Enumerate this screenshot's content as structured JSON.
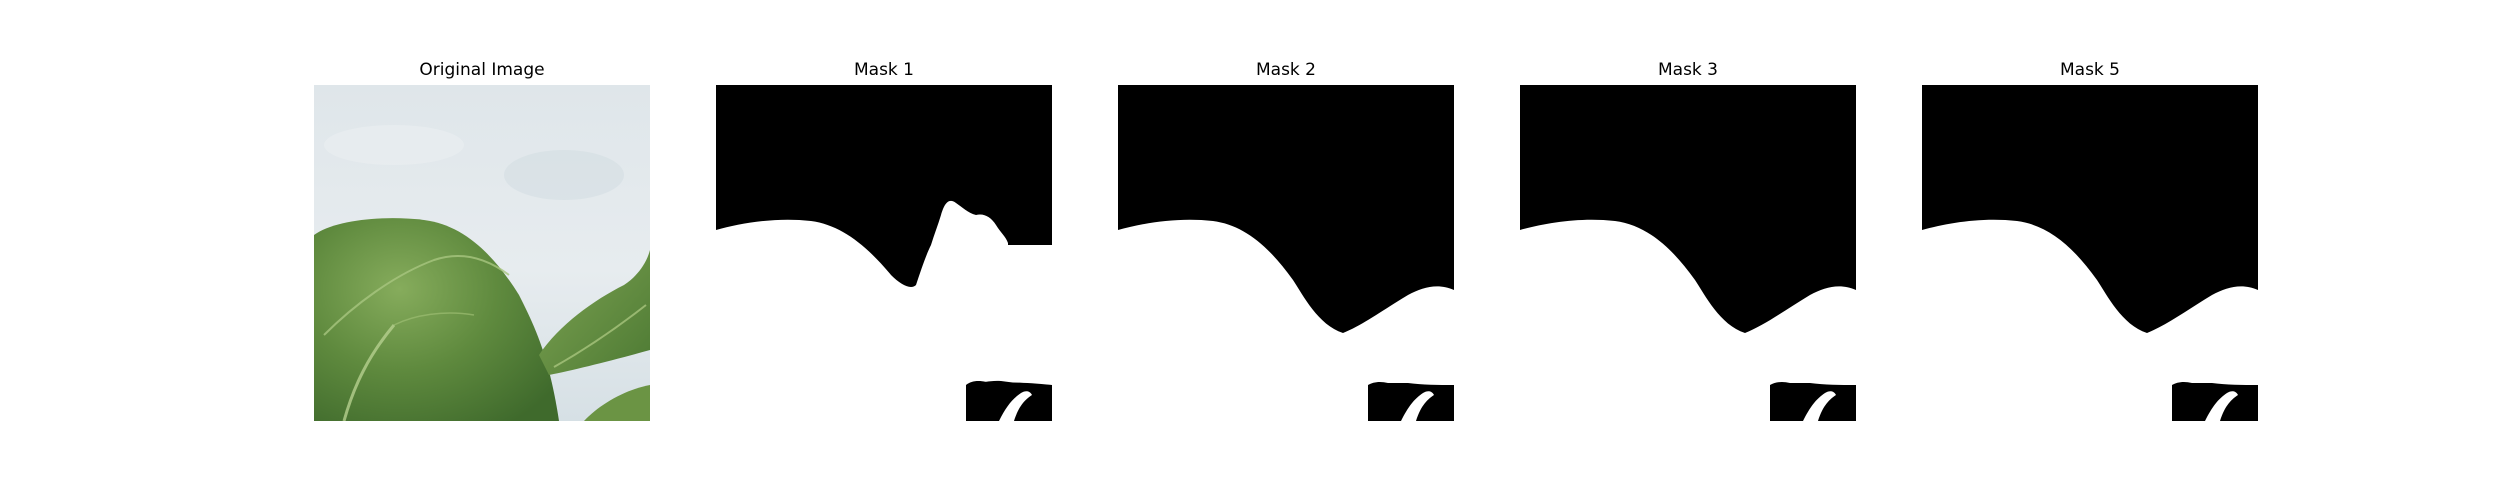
{
  "panels": [
    {
      "title": "Original Image",
      "kind": "photo",
      "subject": "leaf-photo"
    },
    {
      "title": "Mask 1",
      "kind": "mask",
      "variant": "jagged"
    },
    {
      "title": "Mask 2",
      "kind": "mask",
      "variant": "smooth"
    },
    {
      "title": "Mask 3",
      "kind": "mask",
      "variant": "smooth"
    },
    {
      "title": "Mask 5",
      "kind": "mask",
      "variant": "smooth"
    }
  ],
  "colors": {
    "background": "#ffffff",
    "mask_fg": "#ffffff",
    "mask_bg": "#000000",
    "sky_light": "#e3e9ed",
    "sky_mid": "#ccd7dd",
    "leaf_dark": "#3f6a2c",
    "leaf_mid": "#5f8a3e",
    "leaf_light": "#86ac5c"
  }
}
